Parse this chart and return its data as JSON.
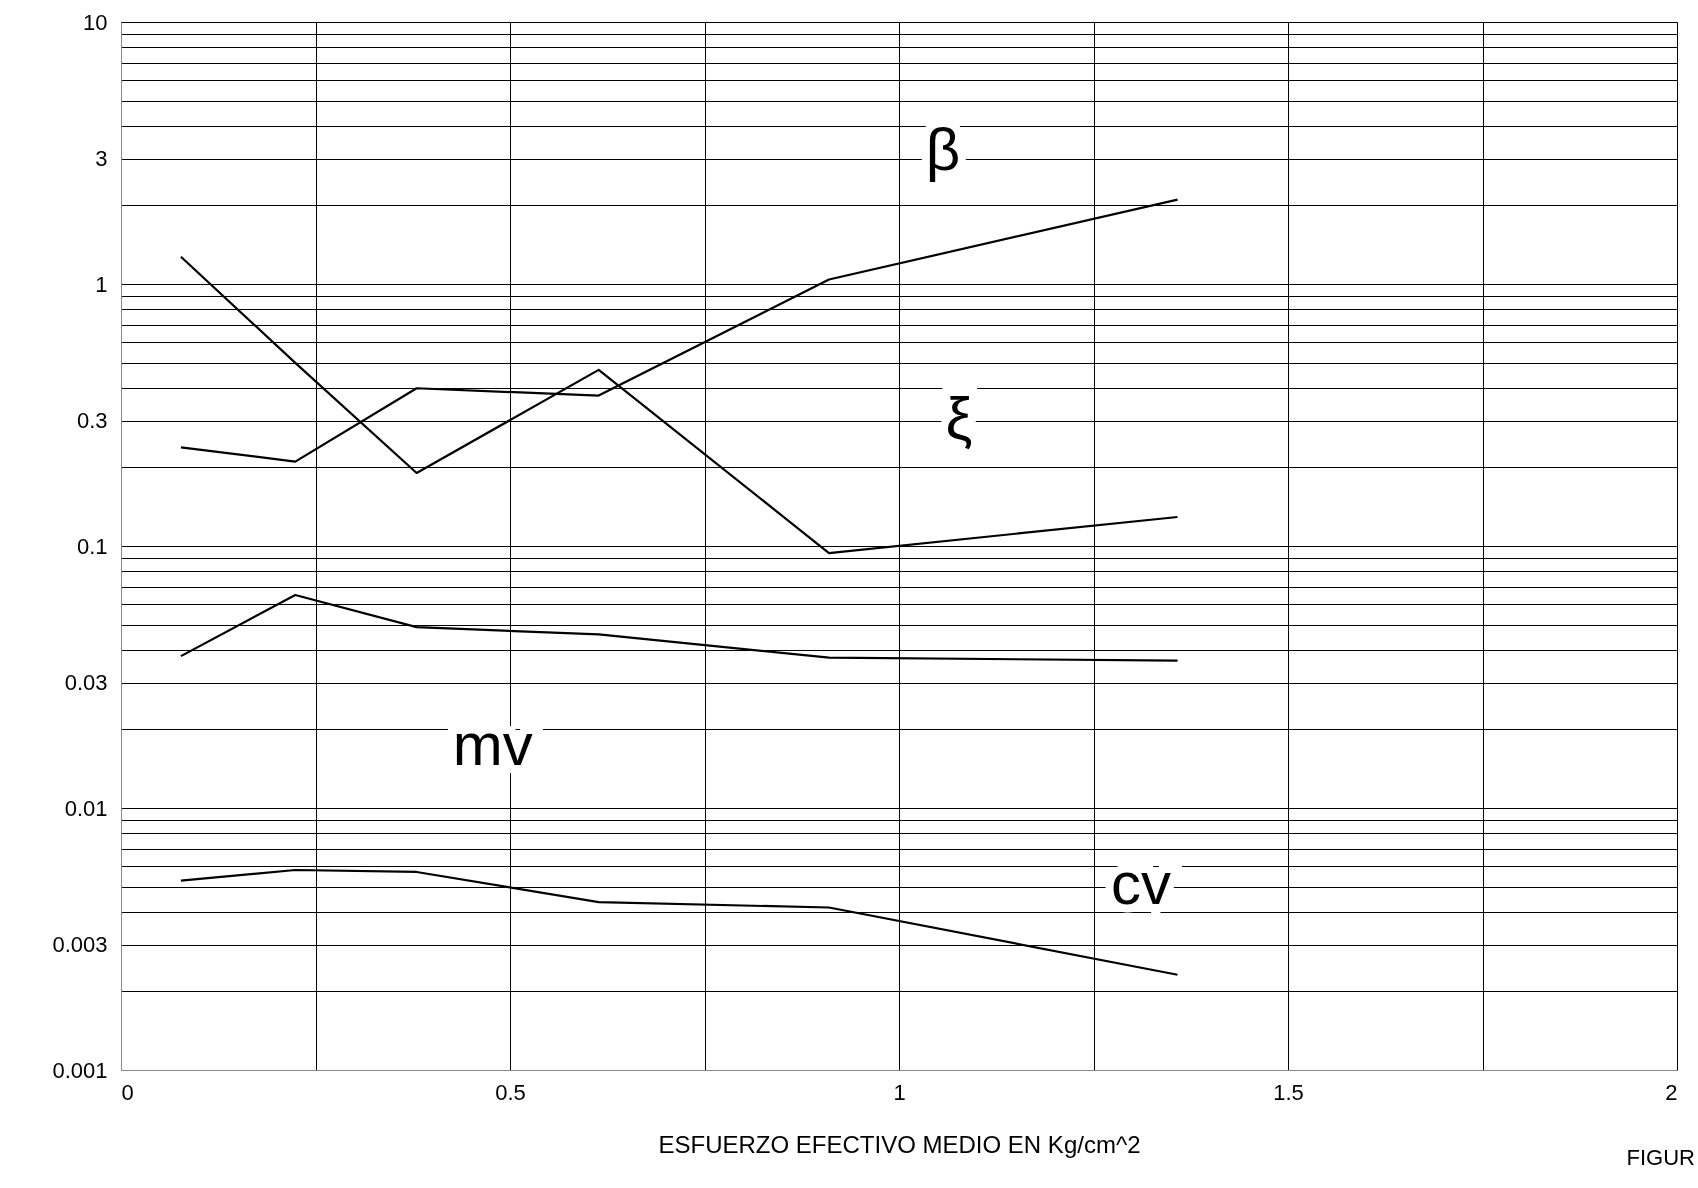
{
  "chart_data": {
    "type": "line",
    "xlabel": "ESFUERZO EFECTIVO MEDIO EN Kg/cm^2",
    "log": "y",
    "grid": true,
    "legend": false,
    "marker": "none",
    "line_style": "solid",
    "xlim": [
      0,
      2
    ],
    "xticks": [
      0,
      {
        "value": 0.25,
        "label": null
      },
      0.5,
      {
        "value": 0.75,
        "label": null
      },
      1,
      {
        "value": 1.25,
        "label": null
      },
      1.5,
      {
        "value": 1.75,
        "label": null
      },
      2
    ],
    "ylim": [
      0.001,
      10
    ],
    "yticks": [
      0.001,
      {
        "value": 0.002,
        "label": null
      },
      0.003,
      {
        "value": 0.004,
        "label": null
      },
      {
        "value": 0.005,
        "label": null
      },
      {
        "value": 0.006,
        "label": null
      },
      {
        "value": 0.007,
        "label": null
      },
      {
        "value": 0.008,
        "label": null
      },
      {
        "value": 0.009,
        "label": null
      },
      0.01,
      {
        "value": 0.02,
        "label": null
      },
      0.03,
      {
        "value": 0.04,
        "label": null
      },
      {
        "value": 0.05,
        "label": null
      },
      {
        "value": 0.06,
        "label": null
      },
      {
        "value": 0.07,
        "label": null
      },
      {
        "value": 0.08,
        "label": null
      },
      {
        "value": 0.09,
        "label": null
      },
      0.1,
      {
        "value": 0.2,
        "label": null
      },
      0.3,
      {
        "value": 0.4,
        "label": null
      },
      {
        "value": 0.5,
        "label": null
      },
      {
        "value": 0.6,
        "label": null
      },
      {
        "value": 0.7,
        "label": null
      },
      {
        "value": 0.8,
        "label": null
      },
      {
        "value": 0.9,
        "label": null
      },
      1,
      {
        "value": 2,
        "label": null
      },
      3,
      {
        "value": 4,
        "label": null
      },
      {
        "value": 5,
        "label": null
      },
      {
        "value": 6,
        "label": null
      },
      {
        "value": 7,
        "label": null
      },
      {
        "value": 8,
        "label": null
      },
      {
        "value": 9,
        "label": null
      },
      10
    ],
    "x": [
      0.077,
      0.224,
      0.38,
      0.614,
      0.91,
      1.358
    ],
    "series": [
      {
        "name": "β",
        "color": "#000000",
        "values": [
          0.238,
          0.21,
          0.4,
          0.375,
          1.04,
          2.1
        ]
      },
      {
        "name": "ξ",
        "color": "#000000",
        "values": [
          1.27,
          0.5,
          0.19,
          0.47,
          0.094,
          0.129
        ]
      },
      {
        "name": "mv",
        "color": "#000000",
        "values": [
          0.038,
          0.065,
          0.049,
          0.046,
          0.0375,
          0.0365
        ]
      },
      {
        "name": "cv",
        "color": "#000000",
        "values": [
          0.00528,
          0.0058,
          0.0057,
          0.00437,
          0.00417,
          0.00231
        ]
      }
    ],
    "annotations": [
      "FIGUR"
    ]
  }
}
